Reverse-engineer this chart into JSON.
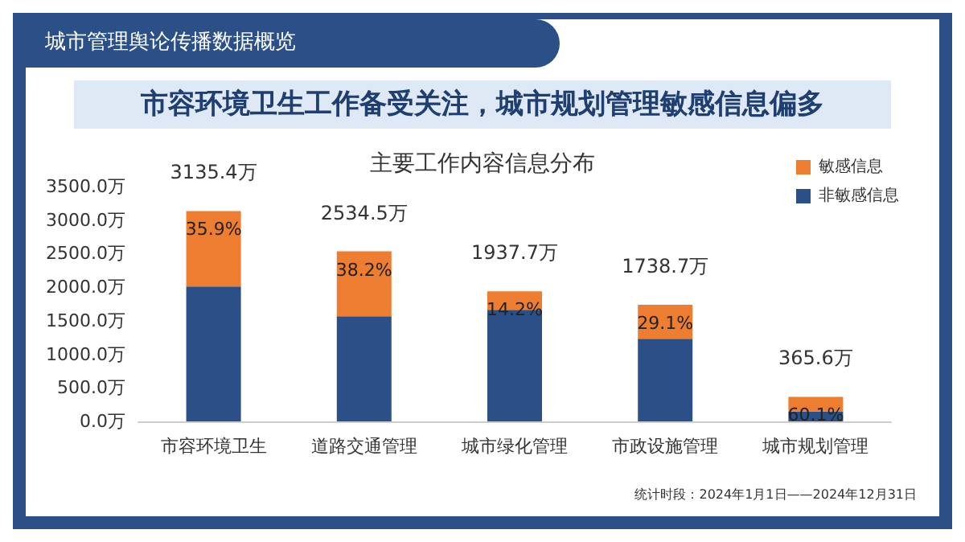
{
  "chart_data": {
    "type": "bar",
    "title": "市容环境卫生工作备受关注，城市规划管理敏感信息偏多",
    "subtitle": "主要工作内容信息分布",
    "annotations": [
      "城市管理舆论传播数据概览",
      "统计时段：2024年1月1日——2024年12月31日",
      {
        "text": "35.9%",
        "x": "市容环境卫生",
        "y": 3135.4
      },
      {
        "text": "38.2%",
        "x": "道路交通管理",
        "y": 2534.5
      },
      {
        "text": "14.2%",
        "x": "城市绿化管理",
        "y": 1937.7
      },
      {
        "text": "29.1%",
        "x": "市政设施管理",
        "y": 1738.7
      },
      {
        "text": "60.1%",
        "x": "城市规划管理",
        "y": 365.6
      }
    ],
    "categories": [
      "市容环境卫生",
      "道路交通管理",
      "城市绿化管理",
      "市政设施管理",
      "城市规划管理"
    ],
    "stacked": true,
    "series": [
      {
        "name": "非敏感信息",
        "color": "#2b5087",
        "values": [
          2009.8,
          1566.3,
          1662.5,
          1232.7,
          145.9
        ]
      },
      {
        "name": "敏感信息",
        "color": "#ed7d31",
        "values": [
          1125.6,
          968.2,
          275.2,
          506.0,
          219.7
        ]
      }
    ],
    "totals": [
      "3135.4万",
      "2534.5万",
      "1937.7万",
      "1738.7万",
      "365.6万"
    ],
    "ylim": [
      0,
      3500
    ],
    "yticks": [
      {
        "value": 0,
        "label": "0.0万"
      },
      {
        "value": 500,
        "label": "500.0万"
      },
      {
        "value": 1000,
        "label": "1000.0万"
      },
      {
        "value": 1500,
        "label": "1500.0万"
      },
      {
        "value": 2000,
        "label": "2000.0万"
      },
      {
        "value": 2500,
        "label": "2500.0万"
      },
      {
        "value": 3000,
        "label": "3000.0万"
      },
      {
        "value": 3500,
        "label": "3500.0万"
      }
    ],
    "grid": false,
    "legend": "top right"
  }
}
